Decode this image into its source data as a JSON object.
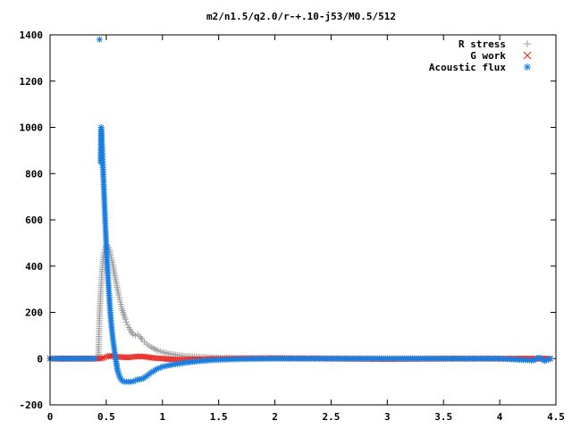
{
  "chart_data": {
    "type": "scatter",
    "title": "m2/n1.5/q2.0/r-+.10-j53/M0.5/512",
    "xlabel": "",
    "ylabel": "",
    "xlim": [
      0,
      4.5
    ],
    "ylim": [
      -200,
      1400
    ],
    "xticks": [
      0,
      0.5,
      1,
      1.5,
      2,
      2.5,
      3,
      3.5,
      4,
      4.5
    ],
    "xtick_labels": [
      "0",
      "0.5",
      "1",
      "1.5",
      "2",
      "2.5",
      "3",
      "3.5",
      "4",
      "4.5"
    ],
    "yticks": [
      -200,
      0,
      200,
      400,
      600,
      800,
      1000,
      1200,
      1400
    ],
    "ytick_labels": [
      "-200",
      "0",
      "200",
      "400",
      "600",
      "800",
      "1000",
      "1200",
      "1400"
    ],
    "grid": false,
    "legend_position": "top-right",
    "series": [
      {
        "name": "R stress",
        "marker": "plus",
        "color": "#a0a0a0",
        "x": [
          0.0,
          0.2,
          0.4,
          0.43,
          0.44,
          0.45,
          0.46,
          0.47,
          0.48,
          0.49,
          0.5,
          0.51,
          0.52,
          0.53,
          0.54,
          0.55,
          0.56,
          0.57,
          0.58,
          0.59,
          0.6,
          0.61,
          0.62,
          0.63,
          0.64,
          0.65,
          0.66,
          0.67,
          0.68,
          0.69,
          0.7,
          0.72,
          0.74,
          0.76,
          0.78,
          0.8,
          0.82,
          0.84,
          0.86,
          0.88,
          0.9,
          0.93,
          0.96,
          1.0,
          1.05,
          1.1,
          1.15,
          1.2,
          1.3,
          1.4,
          1.5,
          1.7,
          2.0,
          2.5,
          3.0,
          3.5,
          4.0,
          4.45
        ],
        "y": [
          0,
          0,
          0,
          10,
          190,
          280,
          360,
          420,
          460,
          480,
          490,
          490,
          480,
          470,
          445,
          425,
          400,
          375,
          350,
          325,
          300,
          275,
          255,
          235,
          215,
          200,
          185,
          170,
          158,
          146,
          135,
          118,
          104,
          100,
          105,
          95,
          82,
          72,
          63,
          56,
          50,
          42,
          35,
          28,
          22,
          18,
          14,
          11,
          8,
          6,
          4,
          3,
          2,
          1,
          0,
          0,
          0,
          0
        ]
      },
      {
        "name": "G work",
        "marker": "cross",
        "color": "#e8231c",
        "x": [
          0.0,
          0.3,
          0.45,
          0.48,
          0.5,
          0.52,
          0.55,
          0.58,
          0.6,
          0.65,
          0.7,
          0.75,
          0.8,
          0.85,
          0.9,
          0.95,
          1.0,
          1.1,
          1.2,
          1.3,
          1.5,
          1.7,
          2.0,
          2.5,
          3.0,
          3.5,
          4.0,
          4.45
        ],
        "y": [
          0,
          0,
          0,
          5,
          8,
          10,
          12,
          10,
          8,
          6,
          5,
          8,
          10,
          8,
          4,
          2,
          0,
          -4,
          -5,
          -3,
          0,
          1,
          2,
          0,
          -2,
          0,
          0,
          0
        ]
      },
      {
        "name": "Acoustic flux",
        "marker": "star",
        "color": "#1a7ee0",
        "x": [
          0.0,
          0.1,
          0.2,
          0.3,
          0.4,
          0.44,
          0.45,
          0.455,
          0.46,
          0.47,
          0.48,
          0.49,
          0.5,
          0.51,
          0.52,
          0.53,
          0.54,
          0.55,
          0.56,
          0.57,
          0.58,
          0.59,
          0.6,
          0.62,
          0.64,
          0.66,
          0.68,
          0.7,
          0.72,
          0.74,
          0.76,
          0.78,
          0.8,
          0.83,
          0.86,
          0.9,
          0.95,
          1.0,
          1.05,
          1.1,
          1.2,
          1.3,
          1.4,
          1.5,
          1.7,
          2.0,
          2.5,
          3.0,
          3.5,
          4.0,
          4.3,
          4.35,
          4.4,
          4.45
        ],
        "y": [
          0,
          0,
          0,
          0,
          0,
          1380,
          850,
          1000,
          945,
          835,
          720,
          600,
          495,
          400,
          315,
          240,
          175,
          125,
          80,
          45,
          10,
          -20,
          -50,
          -80,
          -95,
          -100,
          -100,
          -100,
          -100,
          -98,
          -95,
          -90,
          -90,
          -85,
          -75,
          -60,
          -45,
          -35,
          -30,
          -25,
          -18,
          -12,
          -8,
          -5,
          -2,
          0,
          0,
          0,
          0,
          0,
          -8,
          5,
          -10,
          0
        ]
      }
    ]
  }
}
